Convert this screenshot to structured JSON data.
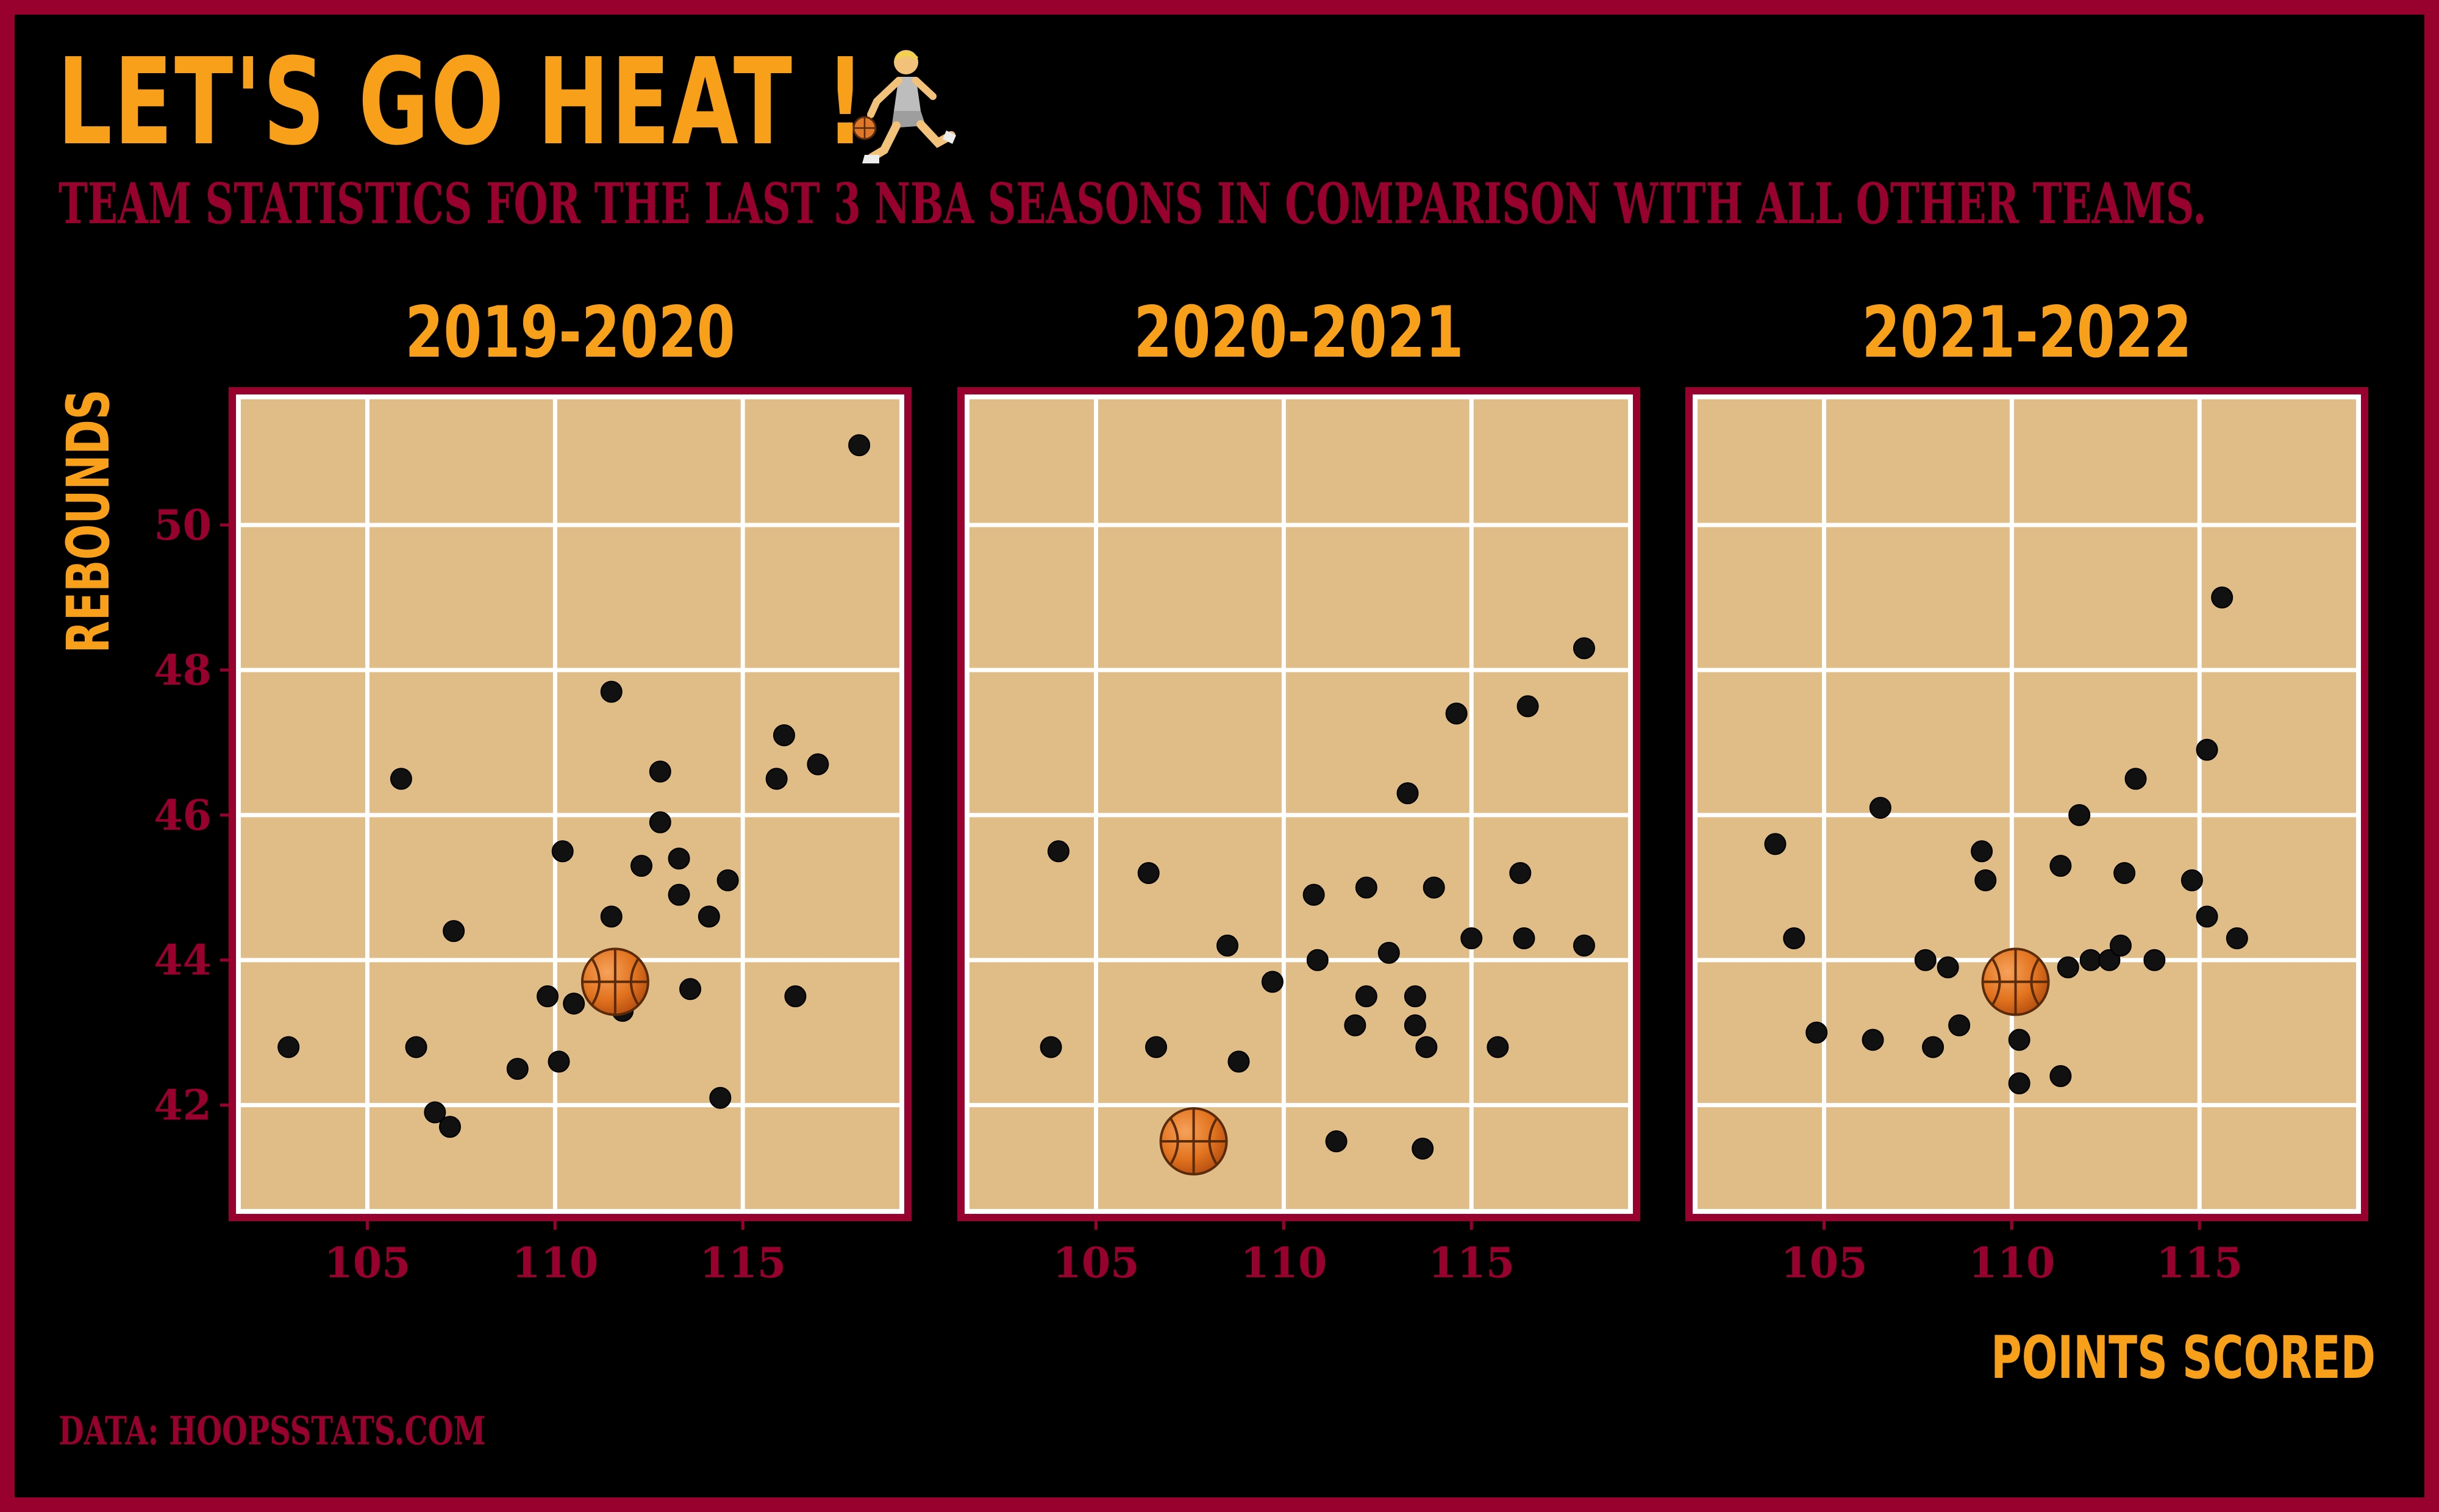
{
  "header": {
    "title": "LET'S GO HEAT !",
    "subtitle": "TEAM STATISTICS FOR THE LAST 3 NBA SEASONS IN COMPARISON WITH ALL OTHER TEAMS."
  },
  "footer": {
    "caption": "DATA: HOOPSSTATS.COM"
  },
  "colors": {
    "heat_red": "#98002E",
    "heat_yellow": "#F9A01B",
    "court": "#E0BC86",
    "background": "#000000",
    "point": "#111111"
  },
  "icons": {
    "title_icon": "person-dribbling-basketball-icon",
    "highlight_marker": "basketball-icon"
  },
  "chart_data": {
    "type": "scatter",
    "xlabel": "POINTS SCORED",
    "ylabel": "REBOUNDS",
    "xlim": [
      101.5,
      119.3
    ],
    "ylim": [
      40.5,
      51.8
    ],
    "x_ticks": [
      105,
      110,
      115
    ],
    "y_ticks": [
      42,
      44,
      46,
      48,
      50
    ],
    "grid": true,
    "highlight_team": "Miami Heat",
    "facets": [
      {
        "title": "2019-2020",
        "points": [
          [
            102.9,
            42.8
          ],
          [
            105.9,
            46.5
          ],
          [
            106.3,
            42.8
          ],
          [
            106.8,
            41.9
          ],
          [
            107.2,
            41.7
          ],
          [
            107.3,
            44.4
          ],
          [
            109.0,
            42.5
          ],
          [
            109.8,
            43.5
          ],
          [
            110.1,
            42.6
          ],
          [
            110.2,
            45.5
          ],
          [
            110.5,
            43.4
          ],
          [
            111.5,
            47.7
          ],
          [
            111.5,
            44.6
          ],
          [
            111.8,
            43.3
          ],
          [
            112.3,
            45.3
          ],
          [
            112.8,
            46.6
          ],
          [
            112.8,
            45.9
          ],
          [
            113.3,
            45.4
          ],
          [
            113.3,
            44.9
          ],
          [
            113.6,
            43.6
          ],
          [
            114.1,
            44.6
          ],
          [
            114.4,
            42.1
          ],
          [
            114.6,
            45.1
          ],
          [
            115.9,
            46.5
          ],
          [
            116.1,
            47.1
          ],
          [
            116.4,
            43.5
          ],
          [
            117.0,
            46.7
          ],
          [
            118.1,
            51.1
          ]
        ],
        "highlight": [
          111.6,
          43.7
        ]
      },
      {
        "title": "2020-2021",
        "points": [
          [
            103.8,
            42.8
          ],
          [
            104.0,
            45.5
          ],
          [
            106.4,
            45.2
          ],
          [
            106.6,
            42.8
          ],
          [
            108.5,
            44.2
          ],
          [
            108.8,
            42.6
          ],
          [
            109.7,
            43.7
          ],
          [
            110.8,
            44.9
          ],
          [
            110.9,
            44.0
          ],
          [
            111.4,
            41.5
          ],
          [
            111.9,
            43.1
          ],
          [
            112.2,
            43.5
          ],
          [
            112.2,
            45.0
          ],
          [
            112.8,
            44.1
          ],
          [
            113.3,
            46.3
          ],
          [
            113.5,
            43.1
          ],
          [
            113.5,
            43.5
          ],
          [
            113.8,
            42.8
          ],
          [
            113.7,
            41.4
          ],
          [
            114.0,
            45.0
          ],
          [
            114.6,
            47.4
          ],
          [
            115.0,
            44.3
          ],
          [
            115.7,
            42.8
          ],
          [
            116.3,
            45.2
          ],
          [
            116.4,
            44.3
          ],
          [
            116.5,
            47.5
          ],
          [
            118.0,
            48.3
          ],
          [
            118.0,
            44.2
          ]
        ],
        "highlight": [
          107.6,
          41.5
        ]
      },
      {
        "title": "2021-2022",
        "points": [
          [
            103.7,
            45.6
          ],
          [
            104.2,
            44.3
          ],
          [
            104.8,
            43.0
          ],
          [
            106.3,
            42.9
          ],
          [
            106.5,
            46.1
          ],
          [
            107.7,
            44.0
          ],
          [
            107.9,
            42.8
          ],
          [
            108.3,
            43.9
          ],
          [
            108.6,
            43.1
          ],
          [
            109.2,
            45.5
          ],
          [
            109.3,
            45.1
          ],
          [
            110.2,
            42.9
          ],
          [
            110.2,
            42.3
          ],
          [
            111.3,
            45.3
          ],
          [
            111.3,
            42.4
          ],
          [
            111.5,
            43.9
          ],
          [
            111.8,
            46.0
          ],
          [
            112.1,
            44.0
          ],
          [
            112.6,
            44.0
          ],
          [
            112.9,
            44.2
          ],
          [
            113.0,
            45.2
          ],
          [
            113.3,
            46.5
          ],
          [
            113.8,
            44.0
          ],
          [
            114.8,
            45.1
          ],
          [
            115.2,
            46.9
          ],
          [
            115.2,
            44.6
          ],
          [
            115.6,
            49.0
          ],
          [
            116.0,
            44.3
          ]
        ],
        "highlight": [
          110.1,
          43.7
        ]
      }
    ]
  }
}
